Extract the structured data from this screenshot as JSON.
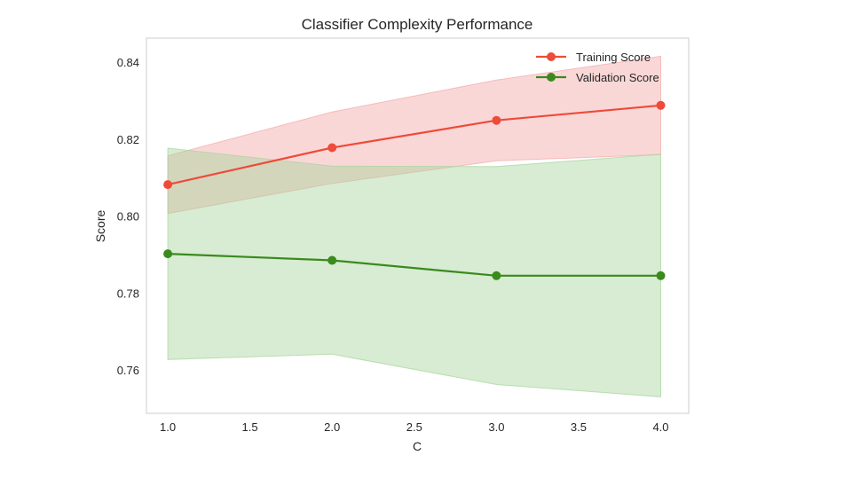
{
  "chart_data": {
    "type": "line",
    "title": "Classifier Complexity Performance",
    "xlabel": "C",
    "ylabel": "Score",
    "xlim": [
      0.87,
      4.17
    ],
    "ylim": [
      0.7488,
      0.8464
    ],
    "xticks": [
      1.0,
      1.5,
      2.0,
      2.5,
      3.0,
      3.5,
      4.0
    ],
    "xtick_labels": [
      "1.0",
      "1.5",
      "2.0",
      "2.5",
      "3.0",
      "3.5",
      "4.0"
    ],
    "yticks": [
      0.76,
      0.78,
      0.8,
      0.82,
      0.84
    ],
    "ytick_labels": [
      "0.76",
      "0.78",
      "0.80",
      "0.82",
      "0.84"
    ],
    "grid": false,
    "legend_position": "top-right",
    "x": [
      1.0,
      2.0,
      3.0,
      4.0
    ],
    "series": [
      {
        "name": "Training Score",
        "color": "#ee4b3a",
        "band_color": "#f4a7a7",
        "values": [
          0.8083,
          0.8179,
          0.825,
          0.8289
        ],
        "lower": [
          0.8008,
          0.8086,
          0.8145,
          0.8161
        ],
        "upper": [
          0.8158,
          0.8272,
          0.8355,
          0.8417
        ]
      },
      {
        "name": "Validation Score",
        "color": "#3a8a1e",
        "band_color": "#a6d49b",
        "values": [
          0.7903,
          0.7886,
          0.7846,
          0.7846
        ],
        "lower": [
          0.7628,
          0.7642,
          0.7563,
          0.7531
        ],
        "upper": [
          0.8178,
          0.8131,
          0.813,
          0.8162
        ]
      }
    ]
  }
}
